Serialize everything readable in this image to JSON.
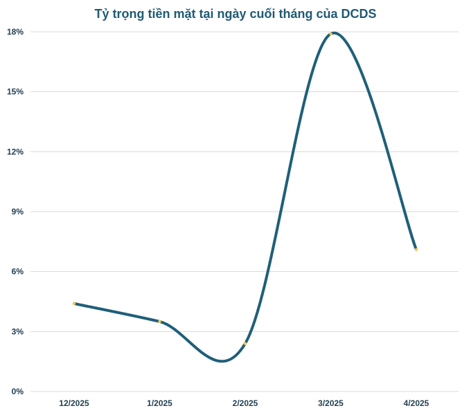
{
  "chart_data": {
    "type": "line",
    "title": "Tỷ trọng tiền mặt tại ngày cuối tháng của DCDS",
    "xlabel": "",
    "ylabel": "",
    "categories": [
      "12/2025",
      "1/2025",
      "2/2025",
      "3/2025",
      "4/2025"
    ],
    "series": [
      {
        "values": [
          4.4,
          3.5,
          2.4,
          17.9,
          7.1
        ]
      }
    ],
    "ylim": [
      0,
      18
    ],
    "yticks": [
      "0%",
      "3%",
      "6%",
      "9%",
      "12%",
      "15%",
      "18%"
    ],
    "ytick_values": [
      0,
      3,
      6,
      9,
      12,
      15,
      18
    ],
    "grid": true,
    "smooth": true,
    "line_color": "#1f5f7a",
    "marker_color": "#f2c94c",
    "grid_color": "#d9d9d9"
  }
}
